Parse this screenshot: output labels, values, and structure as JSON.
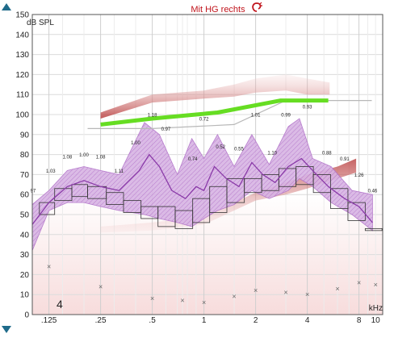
{
  "header": {
    "title": "Mit HG rechts",
    "title_color": "#c0141c",
    "ear_icon": "ear-icon"
  },
  "controls": {
    "scroll_up_icon": "triangle-up-icon",
    "scroll_down_icon": "triangle-down-icon",
    "accent": "#1f6b8a"
  },
  "chart_data": {
    "type": "line",
    "ylabel": "dB SPL",
    "xlabel": "kHz",
    "x_scale": "log",
    "xlim": [
      0.1,
      11
    ],
    "ylim": [
      0,
      150
    ],
    "y_ticks": [
      0,
      10,
      20,
      30,
      40,
      50,
      60,
      70,
      80,
      90,
      100,
      110,
      120,
      130,
      140,
      150
    ],
    "x_ticks": [
      {
        "value": 0.125,
        "label": ".125"
      },
      {
        "value": 0.25,
        "label": ".25"
      },
      {
        "value": 0.5,
        "label": ".5"
      },
      {
        "value": 1,
        "label": "1"
      },
      {
        "value": 2,
        "label": "2"
      },
      {
        "value": 4,
        "label": "4"
      },
      {
        "value": 8,
        "label": "8"
      },
      {
        "value": 10,
        "label": "10"
      }
    ],
    "grid": true,
    "corner_label": "4",
    "colors": {
      "target": "#66dd22",
      "speech_band": "#b070c8",
      "speech_band_fill": "#d8b4e4",
      "ucl_shade": "#b83c3c",
      "threshold_marker": "#666666",
      "reference_line": "#b8b8b8"
    },
    "target_line": [
      {
        "x": 0.25,
        "y": 95
      },
      {
        "x": 0.5,
        "y": 98
      },
      {
        "x": 1.2,
        "y": 101
      },
      {
        "x": 2.8,
        "y": 107
      },
      {
        "x": 5.3,
        "y": 107
      }
    ],
    "reference_line": [
      {
        "x": 0.21,
        "y": 93
      },
      {
        "x": 0.5,
        "y": 93
      },
      {
        "x": 1.5,
        "y": 95
      },
      {
        "x": 3,
        "y": 107
      },
      {
        "x": 9.5,
        "y": 107
      }
    ],
    "ucl_band": [
      {
        "x": 0.25,
        "y1": 98,
        "y2": 101
      },
      {
        "x": 0.5,
        "y1": 106,
        "y2": 110
      },
      {
        "x": 1,
        "y1": 108,
        "y2": 112
      },
      {
        "x": 1.5,
        "y1": 109,
        "y2": 115
      },
      {
        "x": 2,
        "y1": 111,
        "y2": 118
      },
      {
        "x": 3,
        "y1": 112,
        "y2": 120
      },
      {
        "x": 4,
        "y1": 110,
        "y2": 118
      },
      {
        "x": 5.4,
        "y1": 110,
        "y2": 116
      }
    ],
    "lower_band": [
      {
        "x": 0.25,
        "y1": 41,
        "y2": 44
      },
      {
        "x": 0.5,
        "y1": 42,
        "y2": 46
      },
      {
        "x": 1,
        "y1": 45,
        "y2": 49
      },
      {
        "x": 1.5,
        "y1": 52,
        "y2": 56
      },
      {
        "x": 2,
        "y1": 57,
        "y2": 61
      },
      {
        "x": 3,
        "y1": 60,
        "y2": 66
      },
      {
        "x": 4,
        "y1": 63,
        "y2": 70
      },
      {
        "x": 6,
        "y1": 68,
        "y2": 74
      },
      {
        "x": 7.7,
        "y1": 71,
        "y2": 78
      }
    ],
    "speech_band": [
      {
        "x": 0.1,
        "y1": 32,
        "y2": 55
      },
      {
        "x": 0.125,
        "y1": 52,
        "y2": 62
      },
      {
        "x": 0.16,
        "y1": 56,
        "y2": 72
      },
      {
        "x": 0.2,
        "y1": 56,
        "y2": 74
      },
      {
        "x": 0.25,
        "y1": 54,
        "y2": 72
      },
      {
        "x": 0.32,
        "y1": 52,
        "y2": 70
      },
      {
        "x": 0.45,
        "y1": 50,
        "y2": 96
      },
      {
        "x": 0.55,
        "y1": 48,
        "y2": 90
      },
      {
        "x": 0.7,
        "y1": 46,
        "y2": 70
      },
      {
        "x": 0.85,
        "y1": 44,
        "y2": 88
      },
      {
        "x": 1,
        "y1": 48,
        "y2": 78
      },
      {
        "x": 1.2,
        "y1": 52,
        "y2": 90
      },
      {
        "x": 1.5,
        "y1": 55,
        "y2": 74
      },
      {
        "x": 1.9,
        "y1": 62,
        "y2": 90
      },
      {
        "x": 2.4,
        "y1": 58,
        "y2": 75
      },
      {
        "x": 3.1,
        "y1": 62,
        "y2": 94
      },
      {
        "x": 3.6,
        "y1": 68,
        "y2": 98
      },
      {
        "x": 4.3,
        "y1": 64,
        "y2": 78
      },
      {
        "x": 5.5,
        "y1": 56,
        "y2": 74
      },
      {
        "x": 7.3,
        "y1": 50,
        "y2": 62
      },
      {
        "x": 9.6,
        "y1": 42,
        "y2": 60
      }
    ],
    "ltass_line": [
      {
        "x": 0.1,
        "y": 45
      },
      {
        "x": 0.125,
        "y": 56
      },
      {
        "x": 0.16,
        "y": 64
      },
      {
        "x": 0.2,
        "y": 67
      },
      {
        "x": 0.25,
        "y": 64
      },
      {
        "x": 0.32,
        "y": 62
      },
      {
        "x": 0.42,
        "y": 72
      },
      {
        "x": 0.48,
        "y": 80
      },
      {
        "x": 0.55,
        "y": 74
      },
      {
        "x": 0.65,
        "y": 62
      },
      {
        "x": 0.78,
        "y": 58
      },
      {
        "x": 0.9,
        "y": 64
      },
      {
        "x": 1,
        "y": 62
      },
      {
        "x": 1.15,
        "y": 74
      },
      {
        "x": 1.35,
        "y": 68
      },
      {
        "x": 1.6,
        "y": 64
      },
      {
        "x": 1.9,
        "y": 76
      },
      {
        "x": 2.2,
        "y": 70
      },
      {
        "x": 2.6,
        "y": 66
      },
      {
        "x": 3.1,
        "y": 74
      },
      {
        "x": 3.7,
        "y": 78
      },
      {
        "x": 4.3,
        "y": 72
      },
      {
        "x": 5.3,
        "y": 64
      },
      {
        "x": 6.6,
        "y": 58
      },
      {
        "x": 8,
        "y": 54
      },
      {
        "x": 9.6,
        "y": 46
      }
    ],
    "step_boxes": [
      {
        "x1": 0.11,
        "x2": 0.135,
        "y1": 50,
        "y2": 56
      },
      {
        "x1": 0.135,
        "x2": 0.17,
        "y1": 57,
        "y2": 63
      },
      {
        "x1": 0.17,
        "x2": 0.21,
        "y1": 59,
        "y2": 65
      },
      {
        "x1": 0.21,
        "x2": 0.27,
        "y1": 58,
        "y2": 64
      },
      {
        "x1": 0.27,
        "x2": 0.34,
        "y1": 55,
        "y2": 61
      },
      {
        "x1": 0.34,
        "x2": 0.43,
        "y1": 51,
        "y2": 57
      },
      {
        "x1": 0.43,
        "x2": 0.54,
        "y1": 48,
        "y2": 54
      },
      {
        "x1": 0.54,
        "x2": 0.68,
        "y1": 44,
        "y2": 54
      },
      {
        "x1": 0.68,
        "x2": 0.86,
        "y1": 43,
        "y2": 52
      },
      {
        "x1": 0.86,
        "x2": 1.08,
        "y1": 46,
        "y2": 58
      },
      {
        "x1": 1.08,
        "x2": 1.36,
        "y1": 51,
        "y2": 64
      },
      {
        "x1": 1.36,
        "x2": 1.72,
        "y1": 56,
        "y2": 68
      },
      {
        "x1": 1.72,
        "x2": 2.17,
        "y1": 61,
        "y2": 68
      },
      {
        "x1": 2.17,
        "x2": 2.73,
        "y1": 62,
        "y2": 70
      },
      {
        "x1": 2.73,
        "x2": 3.44,
        "y1": 64,
        "y2": 73
      },
      {
        "x1": 3.44,
        "x2": 4.34,
        "y1": 65,
        "y2": 74
      },
      {
        "x1": 4.34,
        "x2": 5.47,
        "y1": 61,
        "y2": 70
      },
      {
        "x1": 5.47,
        "x2": 6.9,
        "y1": 53,
        "y2": 63
      },
      {
        "x1": 6.9,
        "x2": 8.7,
        "y1": 47,
        "y2": 56
      },
      {
        "x1": 8.7,
        "x2": 10.9,
        "y1": 42,
        "y2": 43
      }
    ],
    "threshold_markers": [
      {
        "x": 0.125,
        "y": 24
      },
      {
        "x": 0.25,
        "y": 14
      },
      {
        "x": 0.5,
        "y": 8
      },
      {
        "x": 0.75,
        "y": 7
      },
      {
        "x": 1,
        "y": 6
      },
      {
        "x": 1.5,
        "y": 9
      },
      {
        "x": 2,
        "y": 12
      },
      {
        "x": 3,
        "y": 11
      },
      {
        "x": 4,
        "y": 10
      },
      {
        "x": 6,
        "y": 13
      },
      {
        "x": 8,
        "y": 16
      },
      {
        "x": 10,
        "y": 15
      }
    ],
    "data_labels": [
      {
        "x": 0.101,
        "y": 61,
        "text": "97"
      },
      {
        "x": 0.128,
        "y": 71,
        "text": "1.03"
      },
      {
        "x": 0.16,
        "y": 78,
        "text": "1.08"
      },
      {
        "x": 0.2,
        "y": 79,
        "text": "1.00"
      },
      {
        "x": 0.25,
        "y": 78,
        "text": "1.08"
      },
      {
        "x": 0.32,
        "y": 71,
        "text": "1.11"
      },
      {
        "x": 0.4,
        "y": 85,
        "text": "1.00"
      },
      {
        "x": 0.5,
        "y": 99,
        "text": "1.18"
      },
      {
        "x": 0.6,
        "y": 92,
        "text": "0.97"
      },
      {
        "x": 0.86,
        "y": 77,
        "text": "0.74"
      },
      {
        "x": 1,
        "y": 97,
        "text": "0.72"
      },
      {
        "x": 1.25,
        "y": 83,
        "text": "0.52"
      },
      {
        "x": 1.6,
        "y": 82,
        "text": "0.55"
      },
      {
        "x": 2,
        "y": 99,
        "text": "1.01"
      },
      {
        "x": 2.5,
        "y": 80,
        "text": "1.10"
      },
      {
        "x": 3,
        "y": 99,
        "text": "0.99"
      },
      {
        "x": 4,
        "y": 103,
        "text": "0.93"
      },
      {
        "x": 5.2,
        "y": 80,
        "text": "0.88"
      },
      {
        "x": 6.6,
        "y": 77,
        "text": "0.91"
      },
      {
        "x": 8,
        "y": 69,
        "text": "1.26"
      },
      {
        "x": 9.6,
        "y": 61,
        "text": "0.46"
      }
    ]
  }
}
